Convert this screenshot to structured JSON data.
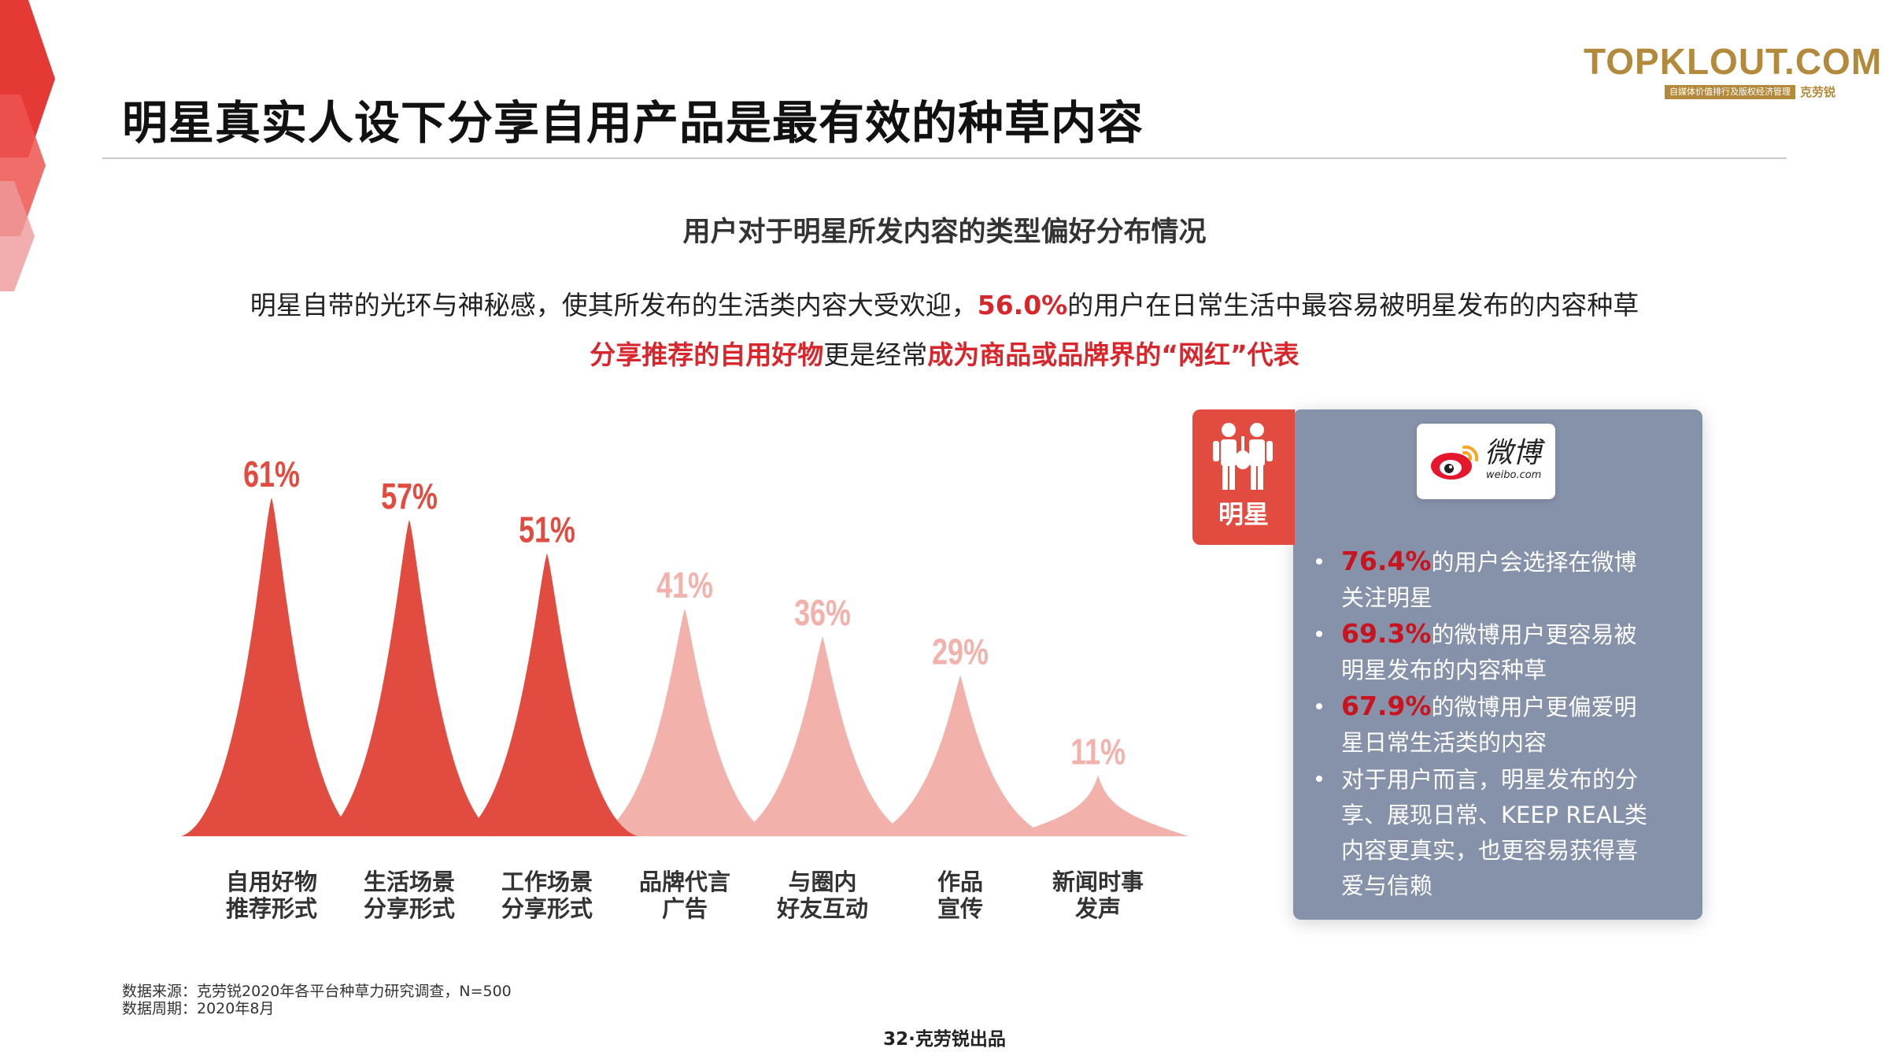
{
  "brand": {
    "logo_text": "TOPKLOUT.COM",
    "logo_sub": "自媒体价值排行及版权经济管理",
    "logo_cn": "克劳锐",
    "accent": "#e24b3f",
    "gold": "#b38a3c"
  },
  "page": {
    "title": "明星真实人设下分享自用产品是最有效的种草内容",
    "footer": "32·克劳锐出品"
  },
  "lead": {
    "line1_a": "明星自带的光环与神秘感，使其所发布的生活类内容大受欢迎，",
    "line1_highlight": "56.0%",
    "line1_b": "的用户在日常生活中最容易被明星发布的内容种草",
    "line2_a": "分享推荐的自用好物",
    "line2_b": "更是经常",
    "line2_c": "成为商品或品牌界的“网红”代表"
  },
  "chart_data": {
    "type": "area",
    "title": "用户对于明星所发内容的类型偏好分布情况",
    "categories": [
      "自用好物\n推荐形式",
      "生活场景\n分享形式",
      "工作场景\n分享形式",
      "品牌代言\n广告",
      "与圈内\n好友互动",
      "作品\n宣传",
      "新闻时事\n发声"
    ],
    "values": [
      61,
      57,
      51,
      41,
      36,
      29,
      11
    ],
    "value_labels": [
      "61%",
      "57%",
      "51%",
      "41%",
      "36%",
      "29%",
      "11%"
    ],
    "unit": "%",
    "ylim": [
      0,
      70
    ],
    "colors": [
      "#e24b3f",
      "#e24b3f",
      "#e24b3f",
      "#f2b1ab",
      "#f2b1ab",
      "#f2b1ab",
      "#f2b1ab"
    ],
    "grid": false,
    "legend": "none"
  },
  "side_panel": {
    "badge_label": "明星",
    "badge_icon": "performers-icon",
    "platform_name": "微博",
    "platform_sub": "weibo.com",
    "platform_icon": "weibo-icon",
    "bullets": [
      {
        "highlight": "76.4%",
        "text": "的用户会选择在微博关注明星"
      },
      {
        "highlight": "69.3%",
        "text": "的微博用户更容易被明星发布的内容种草"
      },
      {
        "highlight": "67.9%",
        "text": "的微博用户更偏爱明星日常生活类的内容"
      },
      {
        "highlight": "",
        "text": "对于用户而言，明星发布的分享、展现日常、KEEP REAL类内容更真实，也更容易获得喜爱与信赖"
      }
    ]
  },
  "source": {
    "line1": "数据来源：克劳锐2020年各平台种草力研究调查，N=500",
    "line2": "数据周期：2020年8月"
  }
}
